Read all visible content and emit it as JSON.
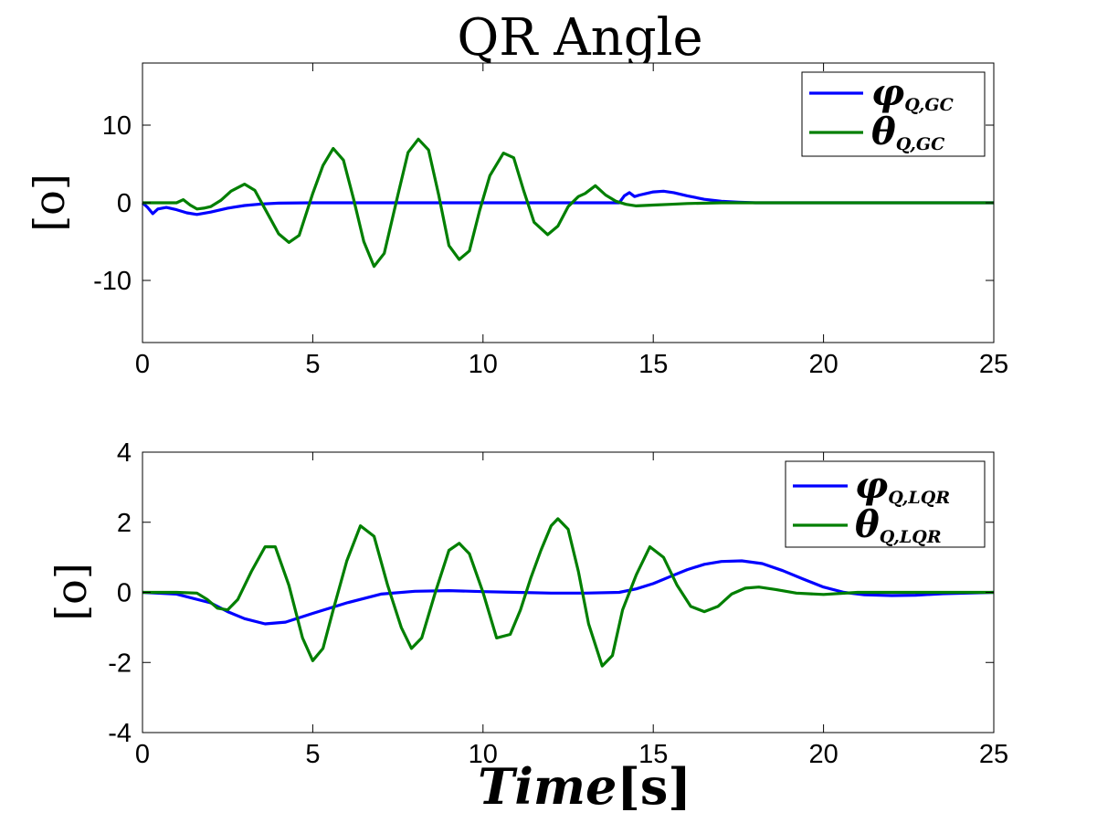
{
  "figure": {
    "title": "QR Angle",
    "xlabel_main": "Time",
    "xlabel_unit": "[s]"
  },
  "colors": {
    "phi": "#0000ff",
    "theta": "#007f00"
  },
  "chart_data": [
    {
      "type": "line",
      "title": "QR Angle",
      "xlabel": "",
      "ylabel": "[o]",
      "xlim": [
        0,
        25
      ],
      "ylim": [
        -18,
        18
      ],
      "xticks": [
        0,
        5,
        10,
        15,
        20,
        25
      ],
      "yticks": [
        -10,
        0,
        10
      ],
      "xtick_labels": [
        "0",
        "5",
        "10",
        "15",
        "20",
        "25"
      ],
      "ytick_labels": [
        "-10",
        "0",
        "10"
      ],
      "grid": false,
      "legend_position": "top-right",
      "series": [
        {
          "legend_symbol": "φ",
          "legend_subscript": "Q,GC",
          "color": "#0000ff",
          "x": [
            0,
            0.15,
            0.3,
            0.45,
            0.7,
            1.0,
            1.3,
            1.6,
            2.0,
            2.5,
            3.0,
            3.5,
            4.0,
            5.0,
            8.0,
            11.0,
            14.0,
            14.15,
            14.3,
            14.45,
            14.6,
            14.8,
            15.0,
            15.3,
            15.6,
            16.0,
            16.5,
            17.0,
            17.5,
            18.0,
            25.0
          ],
          "y": [
            0,
            -0.6,
            -1.4,
            -0.8,
            -0.6,
            -0.9,
            -1.3,
            -1.5,
            -1.2,
            -0.7,
            -0.35,
            -0.15,
            -0.05,
            0,
            0,
            0,
            0,
            0.9,
            1.3,
            0.8,
            1.0,
            1.2,
            1.4,
            1.5,
            1.3,
            0.9,
            0.45,
            0.2,
            0.08,
            0,
            0
          ]
        },
        {
          "legend_symbol": "θ",
          "legend_subscript": "Q,GC",
          "color": "#007f00",
          "x": [
            0,
            0.5,
            1.0,
            1.2,
            1.4,
            1.6,
            1.8,
            2.0,
            2.3,
            2.6,
            3.0,
            3.3,
            3.6,
            4.0,
            4.3,
            4.6,
            5.0,
            5.3,
            5.6,
            5.9,
            6.2,
            6.5,
            6.8,
            7.1,
            7.5,
            7.8,
            8.1,
            8.4,
            8.7,
            9.0,
            9.3,
            9.6,
            9.9,
            10.2,
            10.6,
            10.9,
            11.2,
            11.5,
            11.9,
            12.2,
            12.5,
            12.8,
            13.0,
            13.3,
            13.6,
            13.9,
            14.2,
            14.5,
            15.0,
            15.5,
            16.0,
            17.0,
            18.0,
            25.0
          ],
          "y": [
            0,
            0,
            0,
            0.4,
            -0.3,
            -0.8,
            -0.7,
            -0.5,
            0.3,
            1.5,
            2.4,
            1.6,
            -0.8,
            -4.0,
            -5.1,
            -4.2,
            1.2,
            4.8,
            7.0,
            5.5,
            0.5,
            -5.0,
            -8.2,
            -6.5,
            1.0,
            6.5,
            8.2,
            6.8,
            1.0,
            -5.5,
            -7.3,
            -6.2,
            -1.0,
            3.5,
            6.4,
            5.8,
            1.5,
            -2.5,
            -4.1,
            -3.0,
            -0.5,
            0.8,
            1.2,
            2.2,
            1.0,
            0.2,
            -0.2,
            -0.4,
            -0.3,
            -0.2,
            -0.1,
            0,
            0,
            0
          ]
        }
      ]
    },
    {
      "type": "line",
      "title": "",
      "xlabel": "Time[s]",
      "ylabel": "[o]",
      "xlim": [
        0,
        25
      ],
      "ylim": [
        -4,
        4
      ],
      "xticks": [
        0,
        5,
        10,
        15,
        20,
        25
      ],
      "yticks": [
        -4,
        -2,
        0,
        2,
        4
      ],
      "xtick_labels": [
        "0",
        "5",
        "10",
        "15",
        "20",
        "25"
      ],
      "ytick_labels": [
        "-4",
        "-2",
        "0",
        "2",
        "4"
      ],
      "grid": false,
      "legend_position": "top-right",
      "series": [
        {
          "legend_symbol": "φ",
          "legend_subscript": "Q,LQR",
          "color": "#0000ff",
          "x": [
            0,
            1.0,
            2.0,
            2.5,
            3.0,
            3.6,
            4.2,
            5.0,
            6.0,
            7.0,
            8.0,
            9.0,
            10.0,
            11.0,
            12.0,
            13.0,
            14.0,
            14.5,
            15.0,
            15.5,
            16.0,
            16.5,
            17.0,
            17.6,
            18.2,
            18.8,
            19.4,
            20.0,
            20.6,
            21.2,
            22.0,
            22.7,
            23.5,
            25.0
          ],
          "y": [
            0,
            -0.05,
            -0.3,
            -0.55,
            -0.75,
            -0.9,
            -0.85,
            -0.6,
            -0.3,
            -0.05,
            0.03,
            0.05,
            0.02,
            0,
            -0.02,
            -0.02,
            0,
            0.1,
            0.25,
            0.45,
            0.65,
            0.8,
            0.88,
            0.9,
            0.82,
            0.62,
            0.38,
            0.15,
            0.0,
            -0.07,
            -0.09,
            -0.08,
            -0.04,
            0
          ]
        },
        {
          "legend_symbol": "θ",
          "legend_subscript": "Q,LQR",
          "color": "#007f00",
          "x": [
            0,
            1.0,
            1.6,
            1.9,
            2.2,
            2.5,
            2.8,
            3.2,
            3.6,
            3.9,
            4.3,
            4.7,
            5.0,
            5.3,
            5.6,
            6.0,
            6.4,
            6.8,
            7.2,
            7.6,
            7.9,
            8.2,
            8.6,
            9.0,
            9.3,
            9.6,
            10.0,
            10.4,
            10.8,
            11.1,
            11.4,
            11.7,
            12.0,
            12.2,
            12.5,
            12.8,
            13.1,
            13.5,
            13.8,
            14.1,
            14.5,
            14.9,
            15.3,
            15.7,
            16.1,
            16.5,
            16.9,
            17.3,
            17.7,
            18.1,
            18.6,
            19.2,
            20.0,
            21.0,
            22.0,
            25.0
          ],
          "y": [
            0,
            0,
            -0.02,
            -0.2,
            -0.45,
            -0.5,
            -0.2,
            0.6,
            1.3,
            1.3,
            0.2,
            -1.3,
            -1.95,
            -1.6,
            -0.5,
            0.9,
            1.9,
            1.6,
            0.2,
            -1.0,
            -1.6,
            -1.3,
            0.0,
            1.2,
            1.4,
            1.1,
            0.0,
            -1.3,
            -1.2,
            -0.5,
            0.4,
            1.2,
            1.9,
            2.1,
            1.8,
            0.6,
            -0.9,
            -2.1,
            -1.8,
            -0.5,
            0.5,
            1.3,
            1.0,
            0.2,
            -0.4,
            -0.55,
            -0.4,
            -0.05,
            0.12,
            0.15,
            0.08,
            -0.02,
            -0.06,
            0.0,
            0.0,
            0.0
          ]
        }
      ]
    }
  ]
}
